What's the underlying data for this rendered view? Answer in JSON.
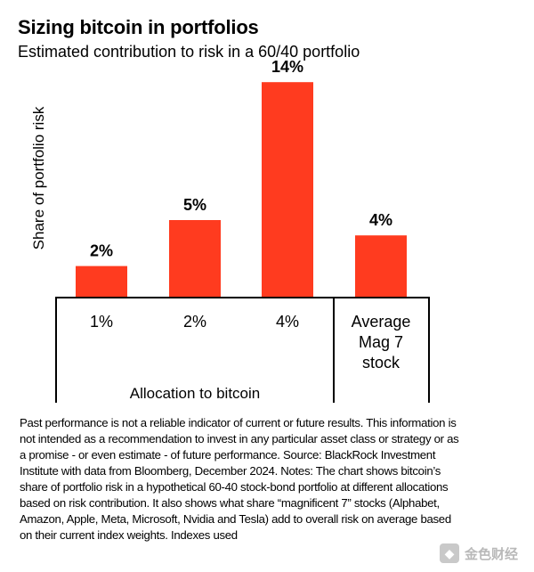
{
  "title": "Sizing bitcoin in portfolios",
  "subtitle": "Estimated contribution to risk in a 60/40 portfolio",
  "chart_data": {
    "type": "bar",
    "ylabel": "Share of portfolio risk",
    "xlabel": "Allocation to bitcoin",
    "ylim": [
      0,
      15
    ],
    "grid": false,
    "bar_color": "#ff3b1f",
    "bars": [
      {
        "category": "1%",
        "value": 2,
        "label": "2%"
      },
      {
        "category": "2%",
        "value": 5,
        "label": "5%"
      },
      {
        "category": "4%",
        "value": 14,
        "label": "14%"
      },
      {
        "category": "Average Mag 7 stock",
        "category_lines": [
          "Average",
          "Mag 7",
          "stock"
        ],
        "value": 4,
        "label": "4%"
      }
    ]
  },
  "notes": "Past performance is not a reliable indicator of current or future results. This information is not intended as a recommendation to invest in any particular asset class or strategy or as a promise - or even estimate - of future performance. Source: BlackRock Investment Institute with data from Bloomberg, December 2024. Notes: The chart shows bitcoin’s share of portfolio risk in a hypothetical 60-40 stock-bond portfolio at different allocations based on risk contribution. It also shows what share “magnificent 7” stocks (Alphabet, Amazon, Apple, Meta, Microsoft, Nvidia and Tesla) add to overall risk on average based on their current index weights. Indexes used",
  "watermark": {
    "text": "金色财经",
    "icon": "jinse-logo-icon"
  }
}
